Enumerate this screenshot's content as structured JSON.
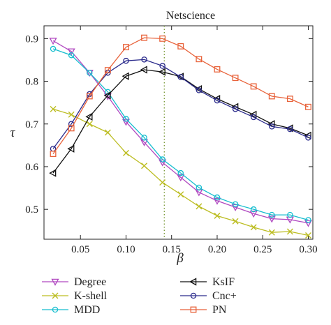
{
  "chart_data": {
    "type": "line",
    "title": "Netscience",
    "xlabel": "β",
    "ylabel": "τ",
    "xlim": [
      0.01,
      0.305
    ],
    "ylim": [
      0.43,
      0.93
    ],
    "xticks": [
      0.05,
      0.1,
      0.15,
      0.2,
      0.25,
      0.3
    ],
    "xtick_labels": [
      "0.05",
      "0.10",
      "0.15",
      "0.20",
      "0.25",
      "0.30"
    ],
    "yticks": [
      0.5,
      0.6,
      0.7,
      0.8,
      0.9
    ],
    "ytick_labels": [
      "0.5",
      "0.6",
      "0.7",
      "0.8",
      "0.9"
    ],
    "x": [
      0.02,
      0.04,
      0.06,
      0.08,
      0.1,
      0.12,
      0.14,
      0.16,
      0.18,
      0.2,
      0.22,
      0.24,
      0.26,
      0.28,
      0.3
    ],
    "reference_line": {
      "x": 0.142,
      "style": "dotted",
      "color": "#6b8e23"
    },
    "grid": false,
    "legend_position": "bottom",
    "series": [
      {
        "name": "Degree",
        "color": "#b048c0",
        "marker": "triangle-down",
        "values": [
          0.895,
          0.87,
          0.82,
          0.765,
          0.705,
          0.657,
          0.61,
          0.575,
          0.54,
          0.52,
          0.505,
          0.49,
          0.478,
          0.476,
          0.468
        ]
      },
      {
        "name": "K-shell",
        "color": "#bcbd22",
        "marker": "x",
        "values": [
          0.735,
          0.722,
          0.7,
          0.68,
          0.632,
          0.602,
          0.563,
          0.535,
          0.507,
          0.485,
          0.472,
          0.458,
          0.446,
          0.448,
          0.439
        ]
      },
      {
        "name": "MDD",
        "color": "#17becf",
        "marker": "circle",
        "values": [
          0.876,
          0.861,
          0.82,
          0.775,
          0.712,
          0.668,
          0.617,
          0.585,
          0.551,
          0.528,
          0.512,
          0.5,
          0.487,
          0.487,
          0.475
        ]
      },
      {
        "name": "KsIF",
        "color": "#111111",
        "marker": "triangle-left",
        "values": [
          0.585,
          0.642,
          0.717,
          0.767,
          0.812,
          0.827,
          0.822,
          0.811,
          0.782,
          0.759,
          0.74,
          0.722,
          0.7,
          0.69,
          0.673
        ]
      },
      {
        "name": "Cnc+",
        "color": "#2b2b8c",
        "marker": "circle",
        "values": [
          0.642,
          0.7,
          0.77,
          0.82,
          0.848,
          0.851,
          0.836,
          0.81,
          0.779,
          0.755,
          0.735,
          0.716,
          0.694,
          0.688,
          0.668
        ]
      },
      {
        "name": "PN",
        "color": "#e8623a",
        "marker": "square",
        "values": [
          0.63,
          0.69,
          0.765,
          0.826,
          0.88,
          0.902,
          0.9,
          0.882,
          0.852,
          0.828,
          0.808,
          0.788,
          0.765,
          0.759,
          0.74
        ]
      }
    ]
  }
}
